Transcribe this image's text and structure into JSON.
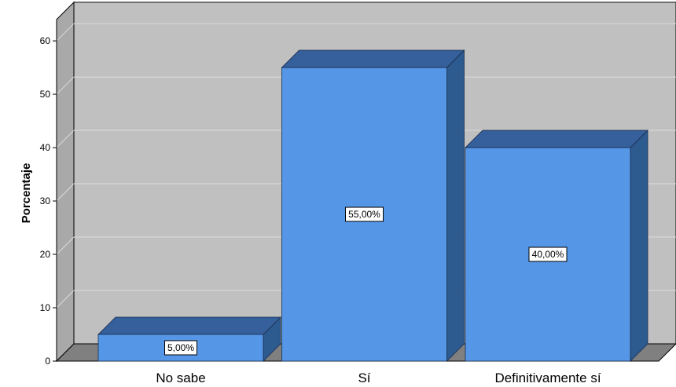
{
  "chart_data": {
    "type": "bar",
    "title": "",
    "xlabel": "",
    "ylabel": "Porcentaje",
    "categories": [
      "No sabe",
      "Sí",
      "Definitivamente sí"
    ],
    "values": [
      5,
      55,
      40
    ],
    "data_labels": [
      "5,00%",
      "55,00%",
      "40,00%"
    ],
    "yticks": [
      0,
      10,
      20,
      30,
      40,
      50,
      60
    ],
    "ylim": [
      0,
      64
    ],
    "grid": true,
    "style": "3d",
    "colors": {
      "bar_front": "#5596e6",
      "bar_top": "#36609b",
      "bar_side": "#2d5a8f",
      "wall": "#c0c0c0",
      "floor": "#808080",
      "gridline": "#dcdcdc"
    }
  }
}
